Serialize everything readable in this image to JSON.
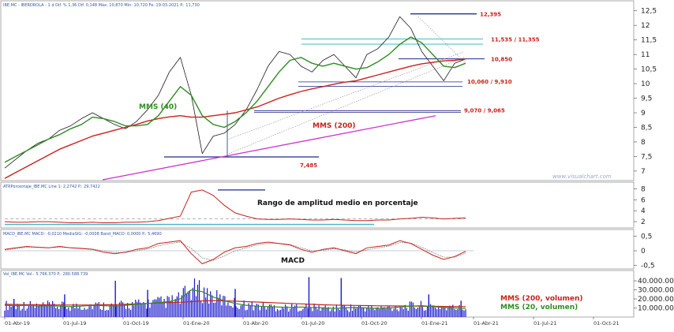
{
  "headers": {
    "main": "IBE.MC - IBERDROLA - 1 d Dif. % 1,36 Dif. 0,148 Máx: 10,870 Mín: 10,720 Fe: 19-03-2021 P.: 11,730",
    "atr": "ATRPorcentaje_IBE.MC Line 1: 2,2742 P.: 29,7422",
    "macd": "MACD_IBE.MC MACD: -0,0210 MediaSIG: -0,0008 Band_MACD: 0,0000 P.: 5,4690",
    "vol": "Vol_IBE.MC Vol.: 5.766.370 P.: 280.588.739"
  },
  "watermark": "www.visualchart.com",
  "colors": {
    "price": "#1a1a1a",
    "sma200": "#c8221d",
    "sma40": "#2f8c22",
    "support_line": "#cc33cc",
    "level": "#1e2a8a",
    "band": "#45b5c9",
    "atr": "#c8221d",
    "macd": "#c8221d",
    "macd_sig": "#888888",
    "volume": "#1a1acc"
  },
  "chart_data": [
    {
      "type": "line",
      "panel": "price",
      "x_ticks": [
        "01-Abr-19",
        "01-Jul-19",
        "01-Oct-19",
        "01-Ene-20",
        "01-Abr-20",
        "01-Jul-20",
        "01-Oct-20",
        "01-Ene-21",
        "01-Abr-21",
        "01-Jul-21",
        "01-Oct-21"
      ],
      "y_ticks": [
        "7",
        "7,5",
        "8",
        "8,5",
        "9",
        "9,5",
        "10",
        "10,5",
        "11",
        "11,5",
        "12",
        "12,5"
      ],
      "ylim": [
        6.7,
        12.6
      ],
      "series": [
        {
          "key": "price",
          "values": [
            7.1,
            7.4,
            7.7,
            7.95,
            8.1,
            8.4,
            8.55,
            8.8,
            9.0,
            8.8,
            8.6,
            8.45,
            8.7,
            9.1,
            9.6,
            10.4,
            10.9,
            9.6,
            7.6,
            8.2,
            8.3,
            8.6,
            9.1,
            9.8,
            10.6,
            11.1,
            11.0,
            10.6,
            10.4,
            10.8,
            11.0,
            10.6,
            10.2,
            11.0,
            11.2,
            11.6,
            12.3,
            11.9,
            11.1,
            10.6,
            10.1,
            10.7,
            10.85
          ]
        },
        {
          "key": "sma200",
          "name": "MMS (200)",
          "values": [
            6.75,
            6.95,
            7.15,
            7.35,
            7.55,
            7.75,
            7.9,
            8.05,
            8.2,
            8.3,
            8.4,
            8.5,
            8.6,
            8.72,
            8.8,
            8.86,
            8.9,
            8.85,
            8.85,
            8.9,
            8.95,
            9.0,
            9.1,
            9.2,
            9.35,
            9.5,
            9.62,
            9.73,
            9.82,
            9.9,
            9.98,
            10.05,
            10.1,
            10.2,
            10.3,
            10.4,
            10.5,
            10.6,
            10.68,
            10.73,
            10.78,
            10.8,
            10.85
          ]
        },
        {
          "key": "sma40",
          "name": "MMS (40)",
          "values": [
            7.3,
            7.5,
            7.7,
            7.9,
            8.1,
            8.25,
            8.45,
            8.6,
            8.85,
            8.8,
            8.7,
            8.55,
            8.55,
            8.6,
            8.9,
            9.4,
            9.9,
            9.6,
            8.9,
            8.6,
            8.5,
            8.7,
            9.0,
            9.4,
            9.9,
            10.4,
            10.8,
            10.9,
            10.7,
            10.6,
            10.7,
            10.6,
            10.5,
            10.55,
            10.75,
            11.0,
            11.35,
            11.6,
            11.4,
            11.0,
            10.6,
            10.55,
            10.7
          ]
        }
      ],
      "levels": [
        {
          "label": "12,395",
          "value": 12.395
        },
        {
          "label": "11,535 / 11,355",
          "values": [
            11.535,
            11.355
          ]
        },
        {
          "label": "10,850",
          "value": 10.85
        },
        {
          "label": "10,060 / 9,910",
          "values": [
            10.06,
            9.91
          ]
        },
        {
          "label": "9,070 / 9,065",
          "values": [
            9.07,
            9.065
          ]
        },
        {
          "label": "7,485",
          "value": 7.485
        }
      ],
      "annotations": {
        "sma40": "MMS (40)",
        "sma200": "MMS (200)"
      }
    },
    {
      "type": "line",
      "panel": "atr",
      "title": "Rango de amplitud medio en porcentaje",
      "y_ticks": [
        "2",
        "4",
        "6",
        "8"
      ],
      "ylim": [
        1,
        8.5
      ],
      "series": [
        {
          "key": "atr",
          "values": [
            2.0,
            1.9,
            1.9,
            2.0,
            2.0,
            1.9,
            1.8,
            1.8,
            1.9,
            1.8,
            1.8,
            1.9,
            1.9,
            2.0,
            2.2,
            2.6,
            3.0,
            7.4,
            7.8,
            6.8,
            5.0,
            3.6,
            3.0,
            2.5,
            2.4,
            2.4,
            2.5,
            2.4,
            2.3,
            2.3,
            2.4,
            2.3,
            2.2,
            2.2,
            2.3,
            2.3,
            2.5,
            2.6,
            2.8,
            2.7,
            2.5,
            2.6,
            2.7
          ]
        }
      ],
      "peak_value": 7.8,
      "dashed_level": 2.5,
      "blue_level": 1.5
    },
    {
      "type": "line",
      "panel": "macd",
      "title": "MACD",
      "y_ticks": [
        "0,5",
        "0",
        "-0,5"
      ],
      "ylim": [
        -0.6,
        0.6
      ],
      "series": [
        {
          "key": "macd",
          "values": [
            0.05,
            0.1,
            0.15,
            0.12,
            0.1,
            0.15,
            0.1,
            0.08,
            0.05,
            -0.05,
            -0.1,
            -0.05,
            0.05,
            0.1,
            0.25,
            0.3,
            0.35,
            -0.1,
            -0.45,
            -0.3,
            -0.05,
            0.1,
            0.15,
            0.25,
            0.3,
            0.25,
            0.2,
            0.05,
            -0.05,
            0.05,
            0.1,
            0.0,
            -0.1,
            0.1,
            0.15,
            0.2,
            0.35,
            0.25,
            0.05,
            -0.15,
            -0.3,
            -0.2,
            -0.02
          ]
        },
        {
          "key": "macd_sig",
          "values": [
            0.03,
            0.07,
            0.12,
            0.13,
            0.11,
            0.12,
            0.11,
            0.09,
            0.06,
            0.0,
            -0.06,
            -0.06,
            0.0,
            0.06,
            0.17,
            0.25,
            0.3,
            0.08,
            -0.25,
            -0.33,
            -0.18,
            0.0,
            0.1,
            0.2,
            0.26,
            0.26,
            0.22,
            0.1,
            0.0,
            0.02,
            0.07,
            0.03,
            -0.05,
            0.03,
            0.1,
            0.16,
            0.28,
            0.27,
            0.12,
            -0.06,
            -0.22,
            -0.22,
            -0.08
          ]
        }
      ]
    },
    {
      "type": "bar",
      "panel": "volume",
      "y_ticks": [
        "40.000.000",
        "30.000.000",
        "20.000.000",
        "10.000.000"
      ],
      "ylim": [
        0,
        47000000
      ],
      "series": [
        {
          "key": "sma200v",
          "name": "MMS (200, volumen)",
          "values": [
            14000000,
            13800000,
            13600000,
            13500000,
            13400000,
            13300000,
            13200000,
            13200000,
            13300000,
            13500000,
            13700000,
            14000000,
            14500000,
            15000000,
            15500000,
            16000000,
            16300000,
            17000000,
            17800000,
            18000000,
            17800000,
            17500000,
            17000000,
            16500000,
            16000000,
            15500000,
            15000000,
            14500000,
            14000000,
            13500000,
            13200000,
            13000000,
            12800000,
            12600000,
            12400000,
            12300000,
            12200000,
            12000000,
            11900000,
            11800000,
            11700000,
            11600000,
            11500000
          ]
        },
        {
          "key": "sma20v",
          "name": "MMS (20, volumen)",
          "values": [
            13000000,
            12500000,
            13000000,
            12000000,
            12500000,
            12000000,
            11500000,
            12000000,
            13000000,
            12500000,
            12000000,
            13000000,
            14000000,
            15000000,
            16000000,
            17000000,
            20000000,
            30000000,
            28000000,
            22000000,
            18000000,
            15000000,
            13000000,
            12000000,
            11500000,
            11000000,
            10500000,
            11000000,
            10500000,
            10000000,
            9500000,
            10000000,
            10500000,
            10000000,
            9500000,
            10000000,
            11000000,
            12000000,
            12500000,
            11500000,
            10500000,
            10000000,
            9500000
          ]
        }
      ],
      "spikes": [
        [
          0.02,
          20000000
        ],
        [
          0.13,
          25000000
        ],
        [
          0.24,
          40000000
        ],
        [
          0.31,
          30000000
        ],
        [
          0.5,
          31000000
        ],
        [
          0.66,
          44000000
        ],
        [
          0.73,
          43000000
        ],
        [
          0.92,
          25000000
        ],
        [
          0.99,
          18000000
        ]
      ],
      "legend": [
        "MMS (200, volumen)",
        "MMS (20, volumen)"
      ]
    }
  ]
}
